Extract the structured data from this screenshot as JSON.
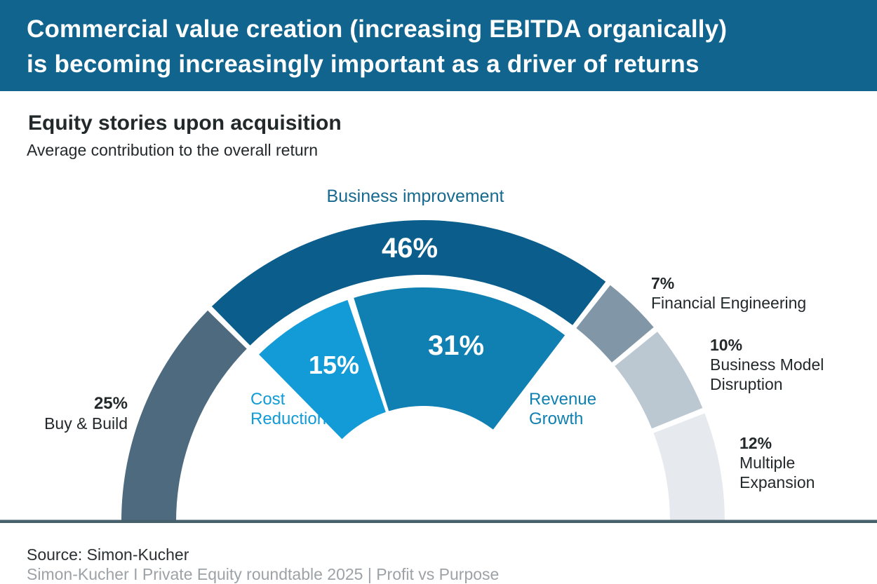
{
  "header": {
    "title_line1": "Commercial value creation (increasing EBITDA organically)",
    "title_line2": "is becoming increasingly important as a driver of returns"
  },
  "section": {
    "title": "Equity stories upon acquisition",
    "subtitle": "Average contribution to the overall return"
  },
  "chart_data": {
    "type": "pie",
    "variant": "semicircle-donut-gauge",
    "title": "Equity stories upon acquisition",
    "subtitle": "Average contribution to the overall return",
    "unit": "%",
    "total": 100,
    "start_deg": 180,
    "end_deg": 0,
    "legend": "none",
    "segments": [
      {
        "label": "Buy & Build",
        "value": 25,
        "display": "25%",
        "color": "#4E6A7F",
        "label_color": "#23292B",
        "label_side": "left"
      },
      {
        "label": "Business improvement",
        "value": 46,
        "display": "46%",
        "color": "#0B5D8C",
        "label_color": "#17698F",
        "label_side": "top"
      },
      {
        "label": "Financial Engineering",
        "value": 7,
        "display": "7%",
        "color": "#8197A8",
        "label_color": "#23292B",
        "label_side": "right"
      },
      {
        "label": "Business Model Disruption",
        "value": 10,
        "display": "10%",
        "color": "#BCC8D1",
        "label_color": "#23292B",
        "label_side": "right"
      },
      {
        "label": "Multiple Expansion",
        "value": 12,
        "display": "12%",
        "color": "#E6EAEE",
        "label_color": "#23292B",
        "label_side": "right"
      }
    ],
    "inner_segments": [
      {
        "label": "Cost Reduction",
        "value": 15,
        "display": "15%",
        "color": "#129BD7",
        "label_color": "#129BD7",
        "parent": "Business improvement"
      },
      {
        "label": "Revenue Growth",
        "value": 31,
        "display": "31%",
        "color": "#0F80B1",
        "label_color": "#0F80B1",
        "parent": "Business improvement"
      }
    ]
  },
  "footer": {
    "source": "Source: Simon-Kucher",
    "note": "Simon-Kucher I Private Equity roundtable 2025 | Profit vs Purpose"
  },
  "colors": {
    "banner_bg": "#11648E",
    "baseline": "#47616C",
    "dark_text": "#23292B",
    "note_gray": "#9DA2A6",
    "white": "#FFFFFF"
  }
}
